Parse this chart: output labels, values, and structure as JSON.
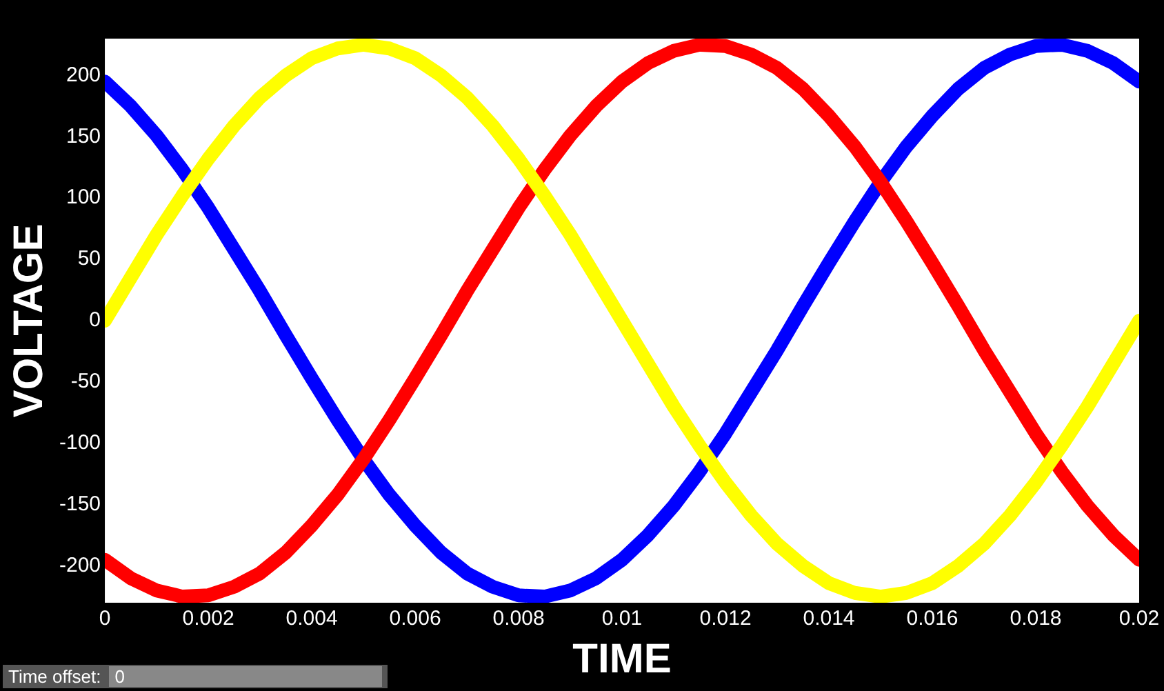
{
  "chart_data": {
    "type": "line",
    "xlabel": "TIME",
    "ylabel": "VOLTAGE",
    "x": [
      0,
      0.0005,
      0.001,
      0.0015,
      0.002,
      0.0025,
      0.003,
      0.0035,
      0.004,
      0.0045,
      0.005,
      0.0055,
      0.006,
      0.0065,
      0.007,
      0.0075,
      0.008,
      0.0085,
      0.009,
      0.0095,
      0.01,
      0.0105,
      0.011,
      0.0115,
      0.012,
      0.0125,
      0.013,
      0.0135,
      0.014,
      0.0145,
      0.015,
      0.0155,
      0.016,
      0.0165,
      0.017,
      0.0175,
      0.018,
      0.0185,
      0.019,
      0.0195,
      0.02
    ],
    "series": [
      {
        "color": "#ffff00",
        "values": [
          0,
          35,
          70,
          102,
          132,
          159,
          182,
          200,
          214,
          222,
          225,
          222,
          214,
          200,
          182,
          159,
          132,
          102,
          70,
          35,
          0,
          -35,
          -70,
          -102,
          -132,
          -159,
          -182,
          -200,
          -214,
          -222,
          -225,
          -222,
          -214,
          -200,
          -182,
          -159,
          -132,
          -102,
          -70,
          -35,
          0
        ]
      },
      {
        "color": "#ff0000",
        "values": [
          -195,
          -210,
          -220,
          -225,
          -224,
          -217,
          -206,
          -189,
          -167,
          -142,
          -113,
          -81,
          -47,
          -12,
          24,
          58,
          92,
          123,
          151,
          175,
          195,
          210,
          220,
          225,
          224,
          217,
          206,
          189,
          167,
          142,
          113,
          81,
          47,
          12,
          -24,
          -58,
          -92,
          -123,
          -151,
          -175,
          -195
        ]
      },
      {
        "color": "#0000ff",
        "values": [
          195,
          175,
          151,
          123,
          92,
          58,
          24,
          -12,
          -47,
          -81,
          -113,
          -142,
          -167,
          -189,
          -206,
          -217,
          -224,
          -225,
          -220,
          -210,
          -195,
          -175,
          -151,
          -123,
          -92,
          -58,
          -24,
          12,
          47,
          81,
          113,
          142,
          167,
          189,
          206,
          217,
          224,
          225,
          220,
          210,
          195
        ]
      }
    ],
    "xlim": [
      0,
      0.02
    ],
    "xticks": [
      0,
      0.002,
      0.004,
      0.006,
      0.008,
      0.01,
      0.012,
      0.014,
      0.016,
      0.018,
      0.02
    ],
    "ylim": [
      -230,
      230
    ],
    "yticks": [
      -200,
      -150,
      -100,
      -50,
      0,
      50,
      100,
      150,
      200
    ],
    "grid": false,
    "legend": false,
    "marker": "none",
    "line_style": "solid",
    "annotations": [
      "Time offset:",
      "0"
    ]
  }
}
